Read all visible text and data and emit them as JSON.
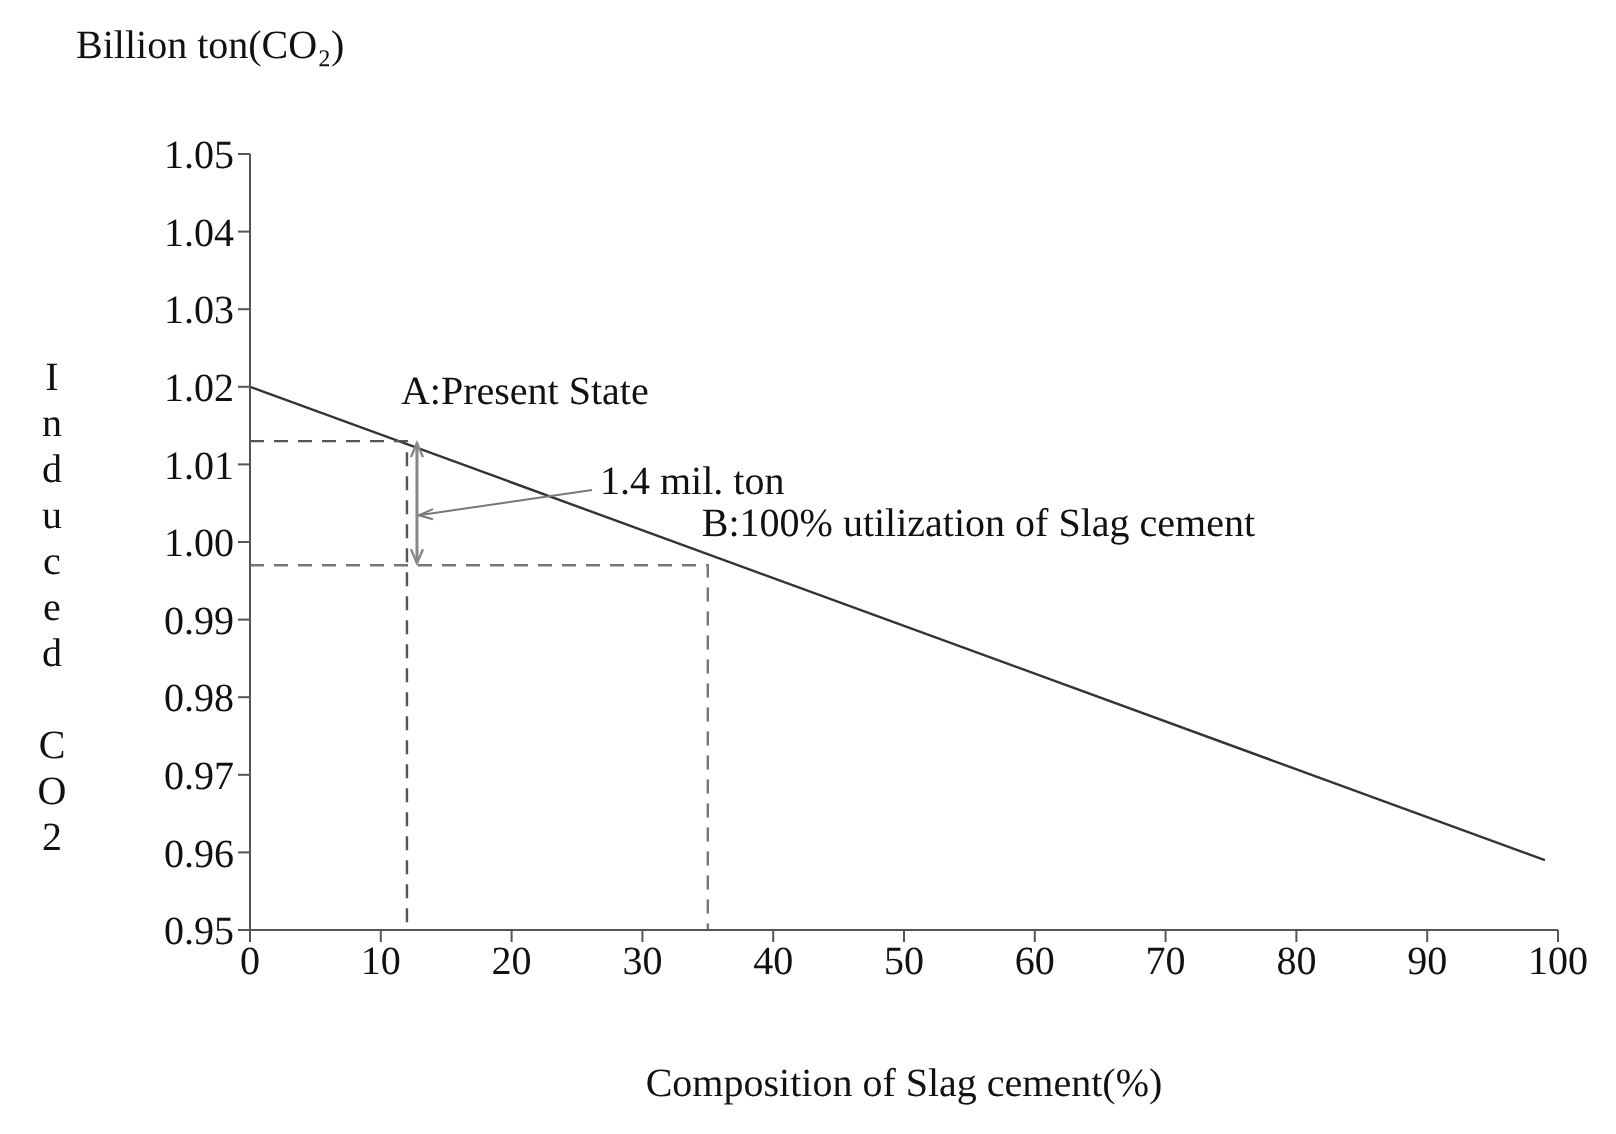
{
  "chart_data": {
    "type": "line",
    "xlabel": "Composition of Slag cement(%)",
    "ylabel": "Induced CO2",
    "annotations": [
      "Billion ton(CO₂)",
      {
        "text": "A:Present State",
        "x": 12,
        "y": 1.013
      },
      {
        "text": "B:100% utilization of Slag cement",
        "x": 35,
        "y": 0.997
      },
      "1.4 mil. ton"
    ],
    "series": [
      {
        "x": [
          0,
          99
        ],
        "values": [
          1.02,
          0.959
        ],
        "color": "#333333",
        "line_style": "solid"
      },
      {
        "x": [
          0,
          12,
          12
        ],
        "values": [
          1.013,
          1.013,
          0.95
        ],
        "color": "#555555",
        "line_style": "dashed"
      },
      {
        "x": [
          0,
          35,
          35
        ],
        "values": [
          0.997,
          0.997,
          0.95
        ],
        "color": "#777777",
        "line_style": "dashed"
      }
    ],
    "xlim": [
      0,
      100
    ],
    "xticks": [
      0,
      10,
      20,
      30,
      40,
      50,
      60,
      70,
      80,
      90,
      100
    ],
    "ylim": [
      0.95,
      1.05
    ],
    "yticks": [
      0.95,
      0.96,
      0.97,
      0.98,
      0.99,
      {
        "value": 1,
        "label": "1.00"
      },
      1.01,
      1.02,
      1.03,
      1.04,
      1.05
    ],
    "grid": false,
    "legend": false,
    "marker": "none"
  }
}
